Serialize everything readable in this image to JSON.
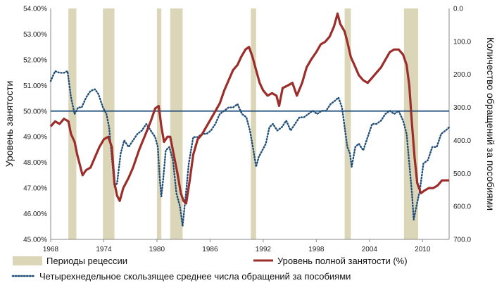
{
  "chart_data": {
    "type": "line",
    "ylabel_left": "Уровень занятости",
    "ylabel_right": "Количество обращений за пособиями",
    "x_range": [
      1968,
      2013
    ],
    "ylim_left": [
      45.0,
      54.0
    ],
    "ylim_right": [
      700.0,
      0.0
    ],
    "right_axis_inverted": true,
    "x_ticks": [
      "1968",
      "1974",
      "1980",
      "1986",
      "1992",
      "1998",
      "2004",
      "2010"
    ],
    "y_ticks_left": [
      "45.00%",
      "46.00%",
      "47.00%",
      "48.00%",
      "49.00%",
      "50.00%",
      "51.00%",
      "52.00%",
      "53.00%",
      "54.00%"
    ],
    "y_ticks_right": [
      "0.0",
      "100.0",
      "200.0",
      "300.0",
      "400.0",
      "500.0",
      "600.0",
      "700.0"
    ],
    "reference_line": {
      "value": 50.0,
      "axis": "left",
      "color": "#1f4e79"
    },
    "recessions": [
      [
        1970.0,
        1970.9
      ],
      [
        1973.9,
        1975.2
      ],
      [
        1980.0,
        1980.5
      ],
      [
        1981.5,
        1982.9
      ],
      [
        1990.6,
        1991.2
      ],
      [
        2001.2,
        2001.9
      ],
      [
        2007.9,
        2009.5
      ]
    ],
    "series": [
      {
        "name": "Уровень полной занятости (%)",
        "axis": "left",
        "color": "#9b2d2a",
        "style": "solid",
        "points": [
          [
            1968.0,
            49.4
          ],
          [
            1968.5,
            49.6
          ],
          [
            1969.0,
            49.5
          ],
          [
            1969.5,
            49.7
          ],
          [
            1970.0,
            49.6
          ],
          [
            1970.3,
            49.1
          ],
          [
            1970.7,
            48.8
          ],
          [
            1971.0,
            48.3
          ],
          [
            1971.3,
            47.9
          ],
          [
            1971.6,
            47.5
          ],
          [
            1972.0,
            47.7
          ],
          [
            1972.5,
            47.8
          ],
          [
            1973.0,
            48.2
          ],
          [
            1973.5,
            48.6
          ],
          [
            1974.0,
            48.9
          ],
          [
            1974.5,
            49.0
          ],
          [
            1974.9,
            48.6
          ],
          [
            1975.2,
            47.2
          ],
          [
            1975.5,
            46.7
          ],
          [
            1975.8,
            46.5
          ],
          [
            1976.2,
            47.0
          ],
          [
            1976.8,
            47.4
          ],
          [
            1977.3,
            47.8
          ],
          [
            1978.0,
            48.5
          ],
          [
            1978.6,
            49.0
          ],
          [
            1979.3,
            49.6
          ],
          [
            1979.8,
            50.1
          ],
          [
            1980.2,
            50.2
          ],
          [
            1980.5,
            49.4
          ],
          [
            1980.8,
            48.8
          ],
          [
            1981.2,
            49.0
          ],
          [
            1981.5,
            49.0
          ],
          [
            1981.9,
            48.3
          ],
          [
            1982.3,
            47.6
          ],
          [
            1982.7,
            46.8
          ],
          [
            1983.0,
            46.5
          ],
          [
            1983.3,
            46.4
          ],
          [
            1983.7,
            47.3
          ],
          [
            1984.1,
            48.3
          ],
          [
            1984.6,
            48.9
          ],
          [
            1985.1,
            49.1
          ],
          [
            1985.6,
            49.4
          ],
          [
            1986.1,
            49.7
          ],
          [
            1986.6,
            50.0
          ],
          [
            1987.1,
            50.3
          ],
          [
            1987.6,
            50.8
          ],
          [
            1988.1,
            51.2
          ],
          [
            1988.6,
            51.6
          ],
          [
            1989.1,
            51.8
          ],
          [
            1989.5,
            52.1
          ],
          [
            1990.0,
            52.4
          ],
          [
            1990.4,
            52.5
          ],
          [
            1990.8,
            52.1
          ],
          [
            1991.2,
            51.6
          ],
          [
            1991.6,
            51.1
          ],
          [
            1992.0,
            50.8
          ],
          [
            1992.5,
            50.6
          ],
          [
            1993.0,
            50.7
          ],
          [
            1993.5,
            50.6
          ],
          [
            1993.8,
            50.2
          ],
          [
            1994.2,
            50.9
          ],
          [
            1994.8,
            51.0
          ],
          [
            1995.3,
            51.1
          ],
          [
            1995.8,
            50.6
          ],
          [
            1996.4,
            51.1
          ],
          [
            1996.9,
            51.7
          ],
          [
            1997.4,
            52.0
          ],
          [
            1998.0,
            52.3
          ],
          [
            1998.5,
            52.6
          ],
          [
            1999.0,
            52.7
          ],
          [
            1999.5,
            52.9
          ],
          [
            2000.0,
            53.3
          ],
          [
            2000.4,
            53.8
          ],
          [
            2000.7,
            53.4
          ],
          [
            2001.2,
            53.1
          ],
          [
            2001.5,
            52.7
          ],
          [
            2001.9,
            52.1
          ],
          [
            2002.3,
            51.8
          ],
          [
            2002.8,
            51.4
          ],
          [
            2003.3,
            51.2
          ],
          [
            2003.8,
            51.1
          ],
          [
            2004.3,
            51.3
          ],
          [
            2004.8,
            51.5
          ],
          [
            2005.3,
            51.7
          ],
          [
            2005.8,
            52.0
          ],
          [
            2006.3,
            52.3
          ],
          [
            2006.8,
            52.4
          ],
          [
            2007.3,
            52.4
          ],
          [
            2007.8,
            52.2
          ],
          [
            2008.2,
            51.8
          ],
          [
            2008.5,
            51.0
          ],
          [
            2008.8,
            49.5
          ],
          [
            2009.1,
            48.2
          ],
          [
            2009.4,
            47.2
          ],
          [
            2009.8,
            46.8
          ],
          [
            2010.2,
            46.9
          ],
          [
            2010.7,
            47.0
          ],
          [
            2011.2,
            47.0
          ],
          [
            2011.7,
            47.1
          ],
          [
            2012.2,
            47.3
          ],
          [
            2012.7,
            47.3
          ],
          [
            2013.0,
            47.3
          ]
        ]
      },
      {
        "name": "Четырехнедельное скользящее среднее числа обращений за пособиями",
        "axis": "right",
        "color": "#1f4e79",
        "style": "dotted",
        "points": [
          [
            1968.0,
            220
          ],
          [
            1968.5,
            190
          ],
          [
            1969.0,
            195
          ],
          [
            1969.5,
            195
          ],
          [
            1969.9,
            190
          ],
          [
            1970.3,
            270
          ],
          [
            1970.7,
            320
          ],
          [
            1971.1,
            300
          ],
          [
            1971.5,
            300
          ],
          [
            1972.0,
            270
          ],
          [
            1972.5,
            250
          ],
          [
            1973.0,
            245
          ],
          [
            1973.4,
            260
          ],
          [
            1973.9,
            300
          ],
          [
            1974.3,
            320
          ],
          [
            1974.6,
            360
          ],
          [
            1974.9,
            450
          ],
          [
            1975.2,
            540
          ],
          [
            1975.5,
            530
          ],
          [
            1975.9,
            440
          ],
          [
            1976.3,
            400
          ],
          [
            1976.8,
            420
          ],
          [
            1977.3,
            400
          ],
          [
            1977.8,
            380
          ],
          [
            1978.3,
            370
          ],
          [
            1978.8,
            350
          ],
          [
            1979.3,
            370
          ],
          [
            1979.8,
            390
          ],
          [
            1980.1,
            420
          ],
          [
            1980.3,
            510
          ],
          [
            1980.5,
            570
          ],
          [
            1980.7,
            520
          ],
          [
            1981.0,
            430
          ],
          [
            1981.4,
            420
          ],
          [
            1981.8,
            460
          ],
          [
            1982.2,
            560
          ],
          [
            1982.6,
            600
          ],
          [
            1982.9,
            660
          ],
          [
            1983.2,
            580
          ],
          [
            1983.6,
            470
          ],
          [
            1984.1,
            390
          ],
          [
            1984.6,
            390
          ],
          [
            1985.1,
            380
          ],
          [
            1985.6,
            380
          ],
          [
            1986.1,
            370
          ],
          [
            1986.6,
            350
          ],
          [
            1987.1,
            320
          ],
          [
            1987.6,
            310
          ],
          [
            1988.1,
            300
          ],
          [
            1988.6,
            300
          ],
          [
            1989.1,
            290
          ],
          [
            1989.6,
            320
          ],
          [
            1990.1,
            330
          ],
          [
            1990.5,
            370
          ],
          [
            1990.9,
            430
          ],
          [
            1991.2,
            480
          ],
          [
            1991.5,
            450
          ],
          [
            1991.9,
            430
          ],
          [
            1992.3,
            410
          ],
          [
            1992.7,
            360
          ],
          [
            1993.1,
            350
          ],
          [
            1993.6,
            370
          ],
          [
            1994.1,
            360
          ],
          [
            1994.6,
            340
          ],
          [
            1995.1,
            370
          ],
          [
            1995.6,
            350
          ],
          [
            1996.1,
            330
          ],
          [
            1996.6,
            330
          ],
          [
            1997.1,
            320
          ],
          [
            1997.6,
            310
          ],
          [
            1998.1,
            320
          ],
          [
            1998.6,
            310
          ],
          [
            1999.1,
            310
          ],
          [
            1999.6,
            290
          ],
          [
            2000.1,
            280
          ],
          [
            2000.5,
            270
          ],
          [
            2000.9,
            300
          ],
          [
            2001.2,
            360
          ],
          [
            2001.5,
            420
          ],
          [
            2001.8,
            440
          ],
          [
            2002.0,
            480
          ],
          [
            2002.4,
            420
          ],
          [
            2002.8,
            410
          ],
          [
            2003.3,
            430
          ],
          [
            2003.8,
            390
          ],
          [
            2004.3,
            350
          ],
          [
            2004.8,
            350
          ],
          [
            2005.3,
            340
          ],
          [
            2005.8,
            320
          ],
          [
            2006.3,
            310
          ],
          [
            2006.8,
            320
          ],
          [
            2007.3,
            310
          ],
          [
            2007.8,
            340
          ],
          [
            2008.2,
            380
          ],
          [
            2008.5,
            470
          ],
          [
            2008.8,
            560
          ],
          [
            2009.0,
            640
          ],
          [
            2009.3,
            600
          ],
          [
            2009.7,
            550
          ],
          [
            2010.1,
            470
          ],
          [
            2010.6,
            460
          ],
          [
            2011.1,
            420
          ],
          [
            2011.6,
            420
          ],
          [
            2012.1,
            380
          ],
          [
            2012.6,
            370
          ],
          [
            2013.0,
            360
          ]
        ]
      }
    ],
    "legend": {
      "placement": "bottom",
      "entries": [
        {
          "label": "Периоды рецессии",
          "kind": "swatch",
          "color": "#dcd6b9"
        },
        {
          "label": "Уровень полной занятости (%)",
          "kind": "line",
          "color": "#9b2d2a"
        },
        {
          "label": "Четырехнедельное скользящее среднее числа обращений за пособиями",
          "kind": "dotted",
          "color": "#1f4e79"
        }
      ]
    }
  }
}
